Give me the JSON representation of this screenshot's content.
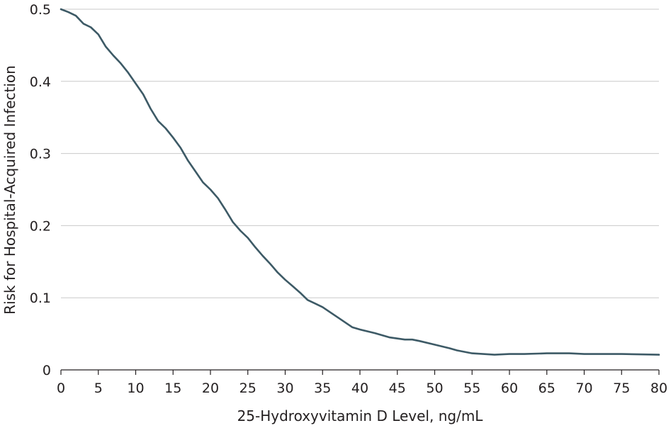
{
  "chart_data": {
    "type": "line",
    "title": "",
    "xlabel": "25-Hydroxyvitamin D Level, ng/mL",
    "ylabel": "Risk for Hospital-Acquired Infection",
    "xlim": [
      0,
      80
    ],
    "ylim": [
      0,
      0.5
    ],
    "xticks": [
      0,
      5,
      10,
      15,
      20,
      25,
      30,
      35,
      40,
      45,
      50,
      55,
      60,
      65,
      70,
      75,
      80
    ],
    "yticks": [
      0,
      0.1,
      0.2,
      0.3,
      0.4,
      0.5
    ],
    "ytick_labels": [
      "0",
      "0.1",
      "0.2",
      "0.3",
      "0.4",
      "0.5"
    ],
    "grid": "horizontal",
    "line_color": "#3d5a66",
    "series": [
      {
        "x": [
          0,
          1,
          2,
          3,
          4,
          5,
          6,
          7,
          8,
          9,
          10,
          11,
          12,
          13,
          14,
          15,
          16,
          17,
          18,
          19,
          20,
          21,
          22,
          23,
          24,
          25,
          26,
          27,
          28,
          29,
          30,
          31,
          32,
          33,
          34,
          35,
          36,
          37,
          38,
          39,
          40,
          42,
          44,
          46,
          47,
          48,
          50,
          52,
          53,
          55,
          58,
          60,
          62,
          65,
          68,
          70,
          75,
          80
        ],
        "y": [
          0.5,
          0.496,
          0.491,
          0.48,
          0.475,
          0.465,
          0.448,
          0.436,
          0.425,
          0.412,
          0.397,
          0.382,
          0.362,
          0.345,
          0.335,
          0.322,
          0.308,
          0.29,
          0.275,
          0.26,
          0.25,
          0.238,
          0.222,
          0.205,
          0.193,
          0.183,
          0.17,
          0.158,
          0.147,
          0.135,
          0.125,
          0.116,
          0.107,
          0.097,
          0.092,
          0.087,
          0.08,
          0.073,
          0.066,
          0.059,
          0.056,
          0.051,
          0.045,
          0.042,
          0.042,
          0.04,
          0.035,
          0.03,
          0.027,
          0.023,
          0.021,
          0.022,
          0.022,
          0.023,
          0.023,
          0.022,
          0.022,
          0.021
        ]
      }
    ]
  }
}
